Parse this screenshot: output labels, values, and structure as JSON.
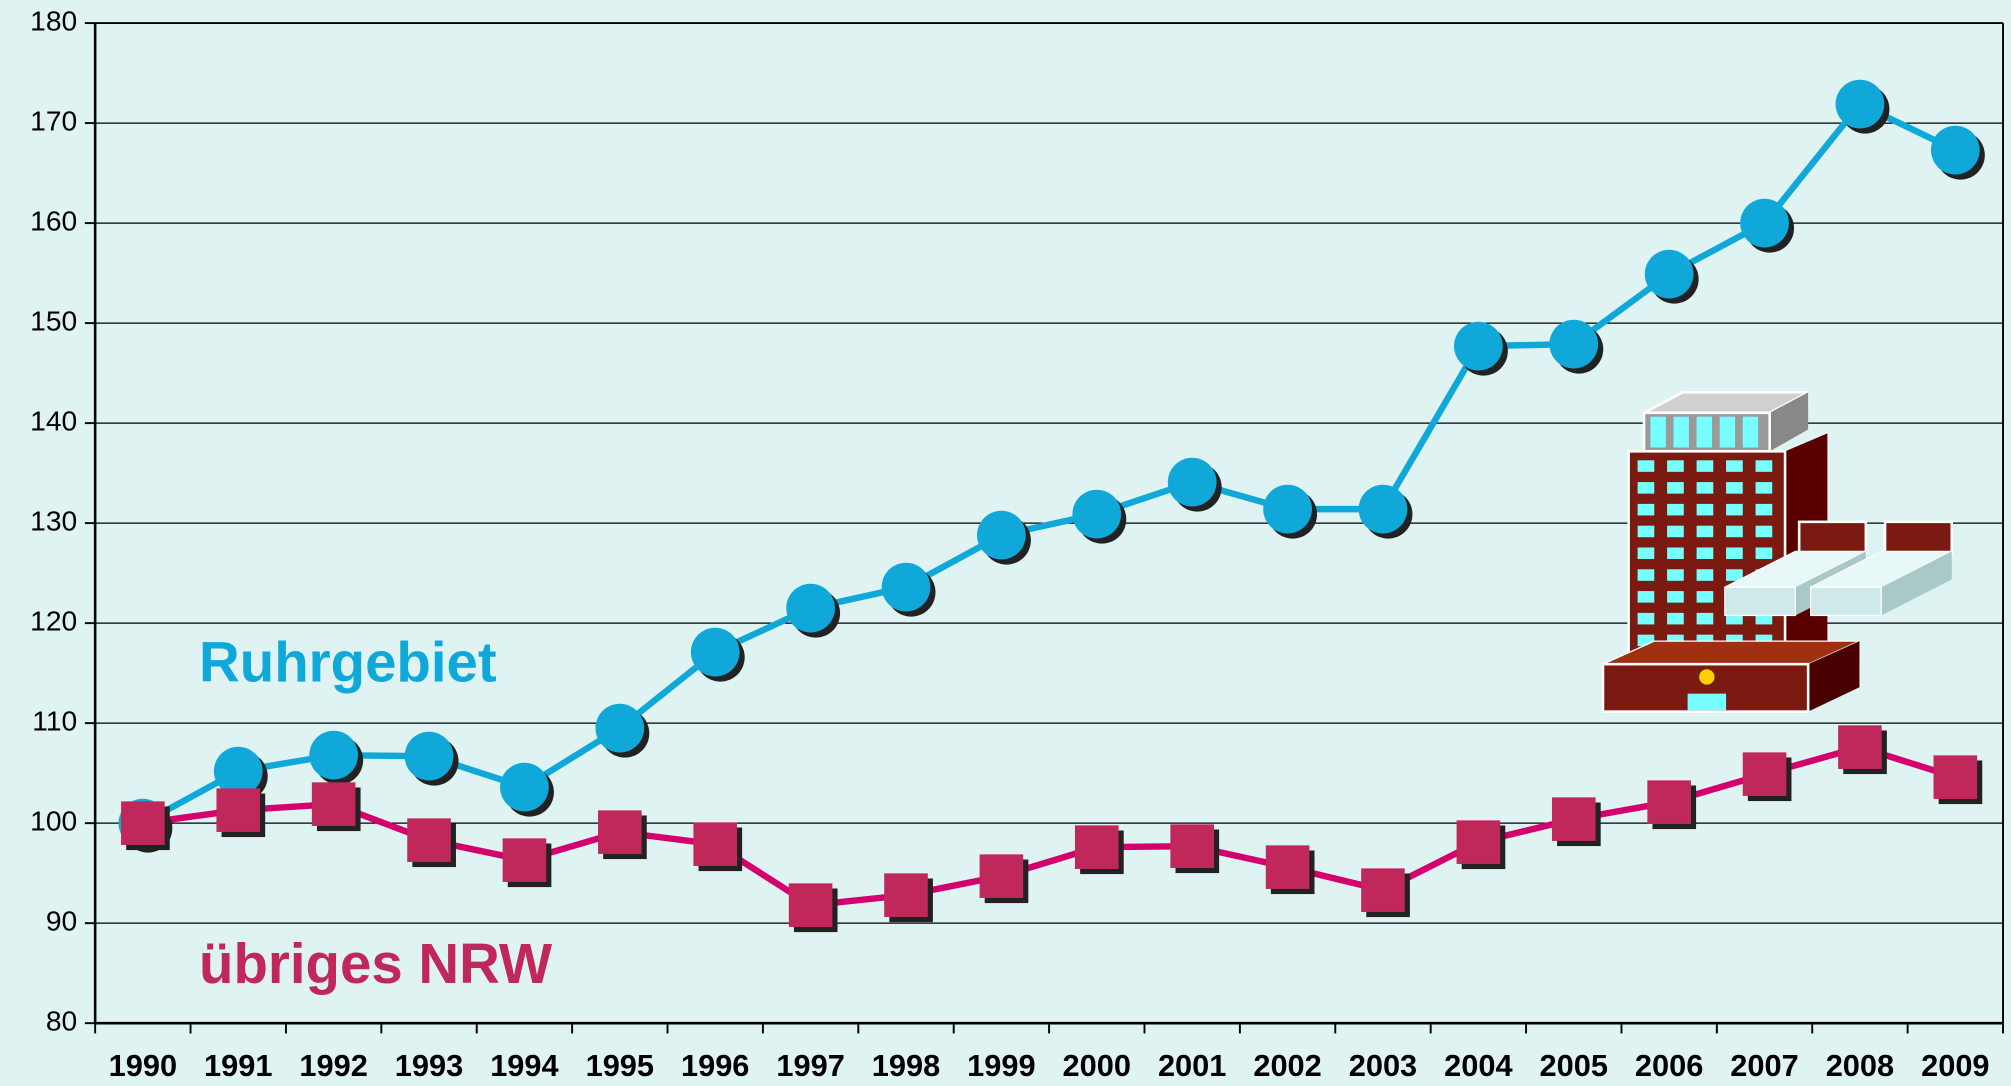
{
  "chart_data": {
    "type": "line",
    "categories": [
      "1990",
      "1991",
      "1992",
      "1993",
      "1994",
      "1995",
      "1996",
      "1997",
      "1998",
      "1999",
      "2000",
      "2001",
      "2002",
      "2003",
      "2004",
      "2005",
      "2006",
      "2007",
      "2008",
      "2009"
    ],
    "series": [
      {
        "name": "Ruhrgebiet",
        "color": "#10a8d8",
        "marker": "circle",
        "values": [
          100,
          105.2,
          106.8,
          106.7,
          103.6,
          109.5,
          117.1,
          121.5,
          123.6,
          128.8,
          130.9,
          134.1,
          131.4,
          131.4,
          147.7,
          147.9,
          154.9,
          160.0,
          171.9,
          167.3
        ]
      },
      {
        "name": "übriges NRW",
        "color": "#c0285c",
        "line_color": "#d4006e",
        "marker": "square",
        "values": [
          100,
          101.3,
          101.9,
          98.3,
          96.3,
          99.1,
          97.9,
          91.8,
          92.8,
          94.7,
          97.6,
          97.7,
          95.6,
          93.3,
          98.1,
          100.4,
          102.1,
          104.9,
          107.6,
          104.6
        ]
      }
    ],
    "ylim": [
      80,
      180
    ],
    "yticks": [
      80,
      90,
      100,
      110,
      120,
      130,
      140,
      150,
      160,
      170,
      180
    ],
    "grid": true
  }
}
